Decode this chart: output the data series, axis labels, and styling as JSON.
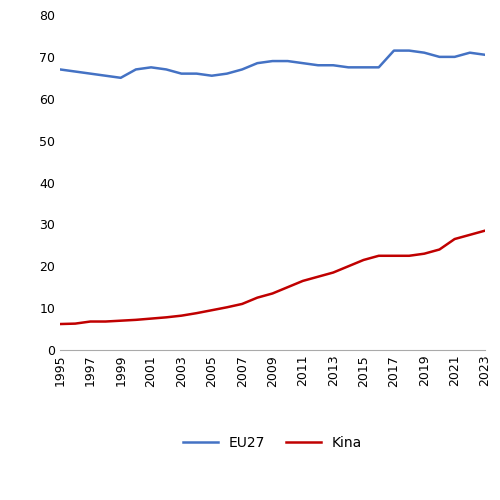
{
  "years": [
    1995,
    1996,
    1997,
    1998,
    1999,
    2000,
    2001,
    2002,
    2003,
    2004,
    2005,
    2006,
    2007,
    2008,
    2009,
    2010,
    2011,
    2012,
    2013,
    2014,
    2015,
    2016,
    2017,
    2018,
    2019,
    2020,
    2021,
    2022,
    2023
  ],
  "eu27": [
    67,
    66.5,
    66,
    65.5,
    65,
    67,
    67.5,
    67,
    66,
    66,
    65.5,
    66,
    67,
    68.5,
    69,
    69,
    68.5,
    68,
    68,
    67.5,
    67.5,
    67.5,
    71.5,
    71.5,
    71,
    70,
    70,
    71,
    70.5
  ],
  "kina": [
    6.2,
    6.3,
    6.8,
    6.8,
    7.0,
    7.2,
    7.5,
    7.8,
    8.2,
    8.8,
    9.5,
    10.2,
    11.0,
    12.5,
    13.5,
    15.0,
    16.5,
    17.5,
    18.5,
    20.0,
    21.5,
    22.5,
    22.5,
    22.5,
    23.0,
    24.0,
    26.5,
    27.5,
    28.5
  ],
  "eu27_color": "#4472C4",
  "kina_color": "#C00000",
  "line_width": 1.8,
  "ylim": [
    0,
    80
  ],
  "yticks": [
    0,
    10,
    20,
    30,
    40,
    50,
    60,
    70,
    80
  ],
  "xtick_years": [
    1995,
    1997,
    1999,
    2001,
    2003,
    2005,
    2007,
    2009,
    2011,
    2013,
    2015,
    2017,
    2019,
    2021,
    2023
  ],
  "legend_eu27": "EU27",
  "legend_kina": "Kina",
  "background_color": "#ffffff",
  "spine_color": "#aaaaaa",
  "tick_fontsize": 9,
  "legend_fontsize": 10
}
